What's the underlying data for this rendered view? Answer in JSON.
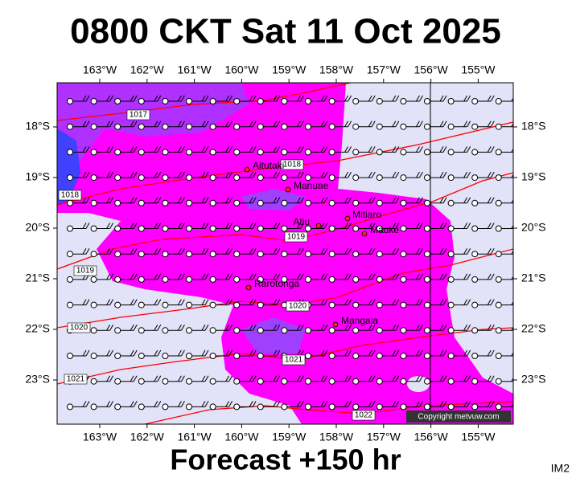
{
  "header": {
    "title": "0800 CKT Sat 11 Oct 2025"
  },
  "map": {
    "longitudes": [
      "163°W",
      "162°W",
      "161°W",
      "160°W",
      "159°W",
      "158°W",
      "157°W",
      "156°W",
      "155°W"
    ],
    "latitudes": [
      "18°S",
      "19°S",
      "20°S",
      "21°S",
      "22°S",
      "23°S"
    ],
    "places": [
      "Aitutaki",
      "Manuae",
      "Atiu",
      "Mitiaro",
      "Mauke",
      "Rarotonga",
      "Mangaia"
    ],
    "isobars": [
      "1017",
      "1018",
      "1018",
      "1019",
      "1019",
      "1020",
      "1020",
      "1021",
      "1021",
      "1022"
    ],
    "copyright": "Copyright metvuw.com"
  },
  "footer": {
    "forecast": "Forecast +150 hr",
    "image_id": "IM2"
  }
}
